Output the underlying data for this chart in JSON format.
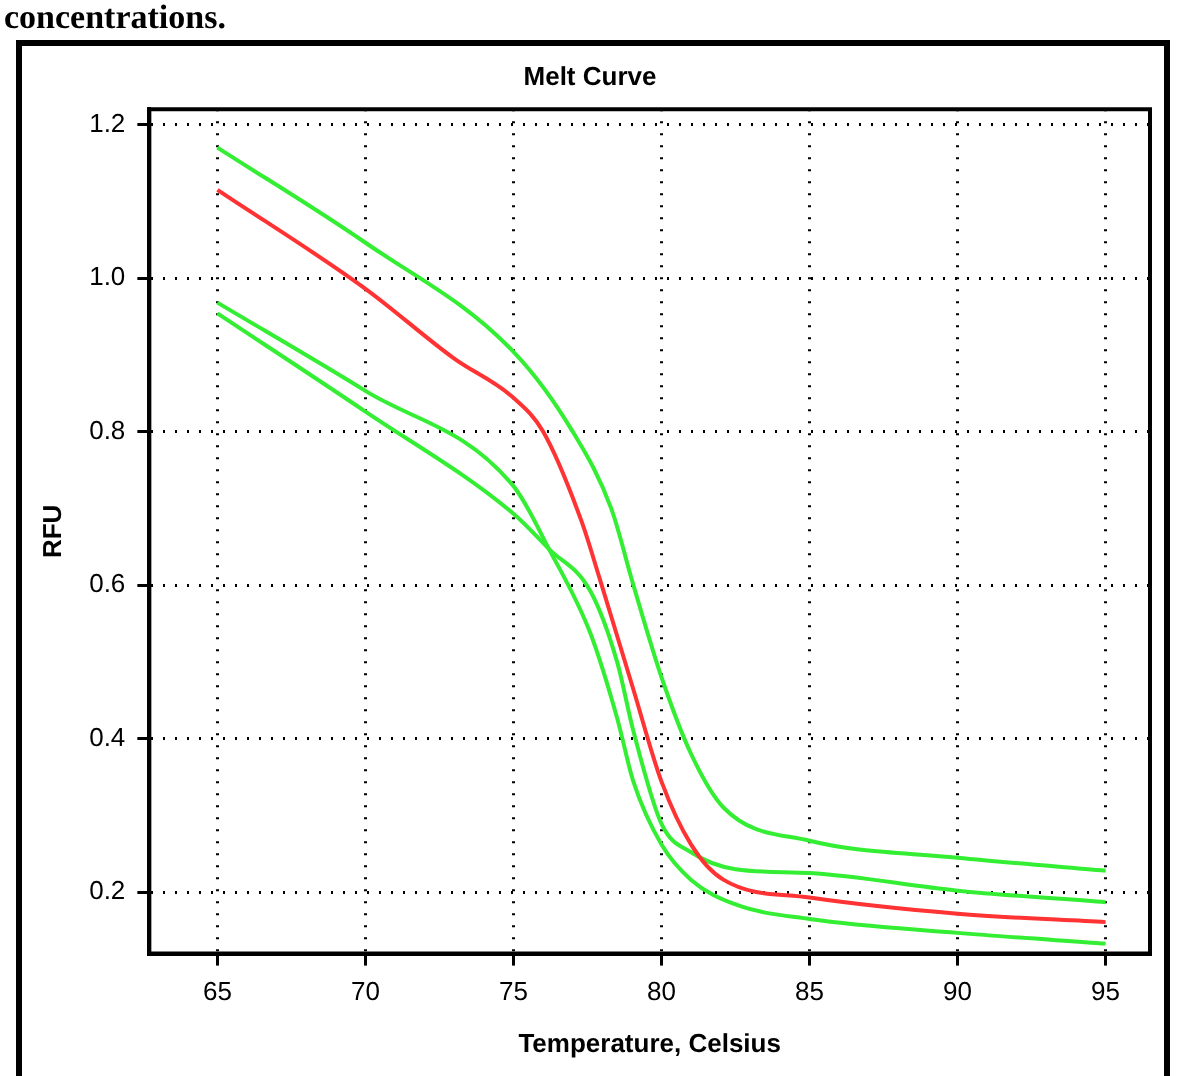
{
  "chart_data": {
    "type": "line",
    "title": "Melt Curve",
    "xlabel": "Temperature, Celsius",
    "ylabel": "RFU",
    "annotations": [
      "concentrations."
    ],
    "xlim": [
      62.7,
      96.5
    ],
    "xticks": [
      65,
      70,
      75,
      80,
      85,
      90,
      95
    ],
    "ylim": [
      0.12,
      1.22
    ],
    "yticks": [
      0.2,
      0.4,
      0.6,
      0.8,
      {
        "value": 1,
        "label": "1.0"
      },
      1.2
    ],
    "grid": true,
    "marker": "none",
    "legend": false,
    "series": [
      {
        "color": "#33ee33",
        "x": [
          65,
          70,
          75,
          77,
          78.3,
          79.05,
          80,
          81,
          82.1,
          85,
          90,
          95
        ],
        "values": [
          1.17,
          1.046,
          0.904,
          0.8,
          0.7,
          0.6,
          0.48,
          0.38,
          0.31,
          0.267,
          0.245,
          0.228
        ]
      },
      {
        "color": "#ff3333",
        "x": [
          65,
          70,
          73,
          75,
          76,
          77.3,
          77.9,
          79.05,
          80,
          81,
          82.1,
          85,
          90,
          95
        ],
        "values": [
          1.115,
          0.986,
          0.895,
          0.844,
          0.8,
          0.683,
          0.61,
          0.464,
          0.344,
          0.262,
          0.216,
          0.193,
          0.172,
          0.161
        ]
      },
      {
        "color": "#33ee33",
        "x": [
          65,
          70,
          75,
          76.2,
          77.6,
          78.5,
          79.05,
          80,
          81,
          82.5,
          85,
          90,
          95
        ],
        "values": [
          0.968,
          0.853,
          0.729,
          0.647,
          0.537,
          0.427,
          0.344,
          0.262,
          0.216,
          0.184,
          0.165,
          0.147,
          0.133
        ]
      },
      {
        "color": "#33ee33",
        "x": [
          65,
          70,
          75,
          76.2,
          77.6,
          78.5,
          79.05,
          80,
          81,
          82.5,
          85,
          90,
          95
        ],
        "values": [
          0.954,
          0.826,
          0.693,
          0.647,
          0.592,
          0.5,
          0.41,
          0.289,
          0.252,
          0.23,
          0.225,
          0.202,
          0.187
        ]
      }
    ]
  }
}
